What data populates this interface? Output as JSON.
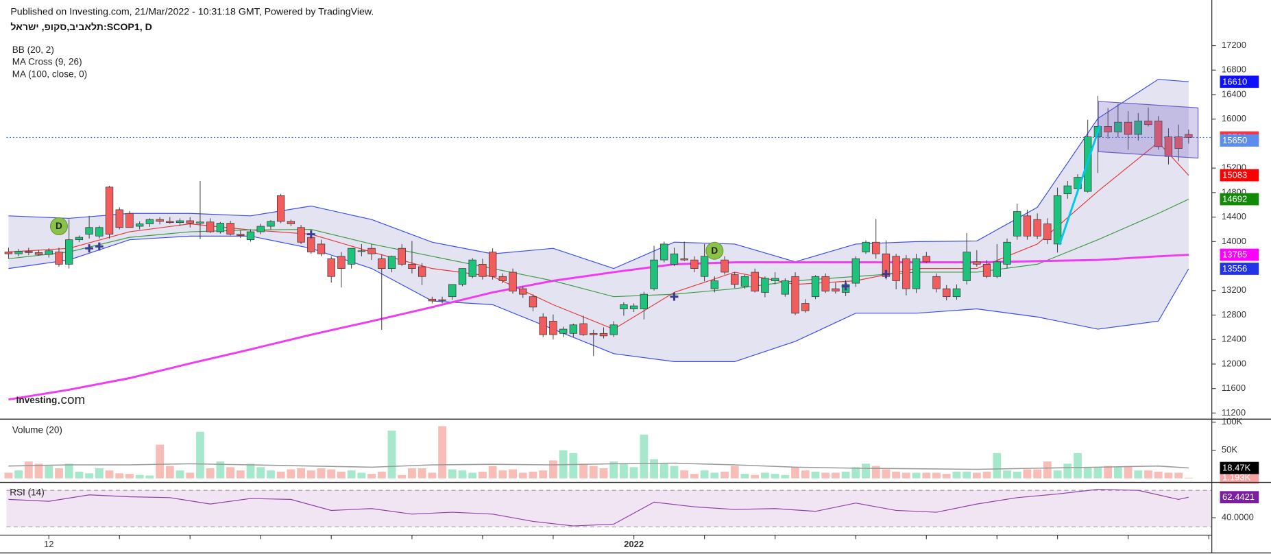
{
  "header": {
    "published": "Published on Investing.com, 21/Mar/2022 - 10:31:18 GMT, Powered by TradingView.",
    "symbol": "תלאביב,סקופ, ישראל:SCOP1, D",
    "logo": [
      "Investing",
      ".com"
    ]
  },
  "chart_data": [
    {
      "type": "candlestick",
      "indicators": [
        "BB (20, 2)",
        "MA Cross (9, 26)",
        "MA (100, close, 0)"
      ],
      "xlim": [
        -0.2,
        119.3
      ],
      "ylim": [
        11100,
        17680
      ],
      "yticks": [
        11200,
        11600,
        12000,
        12400,
        12800,
        13200,
        14000,
        14400,
        14800,
        15200,
        16000,
        16400,
        16800,
        17200
      ],
      "xticks": [
        {
          "value": 4,
          "label": "12"
        },
        {
          "value": 62,
          "label": "2022"
        }
      ],
      "xtick_marks": [
        11,
        18,
        25,
        32,
        40,
        47,
        54,
        69,
        76,
        84,
        91,
        98,
        104,
        111,
        119
      ],
      "up_color": "#1fc27a",
      "down_color": "#f25c5c",
      "last_label_color": "#f23645",
      "open": [
        13830,
        13800,
        13840,
        13820,
        13790,
        13830,
        13630,
        14030,
        14120,
        14090,
        14890,
        14520,
        14460,
        14250,
        14290,
        14360,
        14330,
        14310,
        14340,
        14300,
        14320,
        14160,
        14300,
        14120,
        14030,
        14160,
        14250,
        14750,
        14330,
        14230,
        14070,
        13960,
        13720,
        13760,
        13630,
        13850,
        13890,
        13720,
        13560,
        13890,
        13630,
        13590,
        13060,
        13050,
        13100,
        13300,
        13430,
        13630,
        13830,
        13430,
        13500,
        13230,
        13100,
        12770,
        12700,
        12500,
        12500,
        12660,
        12500,
        12500,
        12480,
        12900,
        12900,
        12900,
        13230,
        13700,
        13630,
        13720,
        13700,
        13430,
        13230,
        13700,
        13460,
        13270,
        13500,
        13170,
        13360,
        13140,
        13430,
        12990,
        13100,
        13430,
        13230,
        13170,
        13320,
        13830,
        13990,
        13800,
        13760,
        13720,
        13230,
        13760,
        13430,
        13230,
        13100,
        13360,
        13670,
        13630,
        13430,
        13630,
        14090,
        14420,
        14360,
        14290,
        13960,
        14780,
        14860,
        14820,
        15710,
        15880,
        15790,
        15950,
        15750,
        15970,
        15970,
        15710,
        15710,
        15750
      ],
      "high": [
        13900,
        13880,
        13900,
        13860,
        13890,
        13900,
        14360,
        14100,
        14420,
        14260,
        14910,
        14560,
        14500,
        14330,
        14380,
        14400,
        14400,
        14380,
        14400,
        14990,
        14380,
        14320,
        14340,
        14180,
        14200,
        14290,
        14350,
        14780,
        14360,
        14270,
        14120,
        14030,
        13760,
        13830,
        13890,
        13960,
        13960,
        13790,
        13770,
        13960,
        14010,
        13650,
        13100,
        13100,
        13280,
        13560,
        13730,
        13720,
        13890,
        13480,
        13560,
        13270,
        13140,
        12830,
        12810,
        12610,
        12660,
        12790,
        12560,
        12600,
        12700,
        13010,
        12990,
        13180,
        13930,
        14000,
        13900,
        14000,
        13760,
        13960,
        13430,
        13760,
        13500,
        13460,
        13560,
        13430,
        13500,
        13400,
        13500,
        13060,
        13450,
        13480,
        13330,
        13370,
        13760,
        14020,
        14370,
        14020,
        13800,
        13780,
        13800,
        13830,
        13480,
        13290,
        13300,
        14140,
        13860,
        13700,
        13960,
        14050,
        14620,
        14520,
        14460,
        14380,
        14880,
        14990,
        15100,
        15990,
        16380,
        16180,
        16250,
        16130,
        16100,
        16190,
        16050,
        15850,
        15910,
        15830
      ],
      "low": [
        13720,
        13760,
        13780,
        13770,
        13740,
        13590,
        13560,
        13990,
        14050,
        14050,
        14050,
        14200,
        14250,
        14200,
        14240,
        14280,
        14290,
        14260,
        14230,
        14040,
        14140,
        14130,
        14100,
        14060,
        14000,
        14120,
        14200,
        14300,
        14250,
        13960,
        13800,
        13760,
        13330,
        13250,
        13560,
        13760,
        13700,
        12560,
        13500,
        13600,
        13480,
        13290,
        12990,
        12990,
        13050,
        13270,
        13400,
        13380,
        13380,
        13320,
        13150,
        13080,
        12860,
        12440,
        12400,
        12440,
        12440,
        12460,
        12130,
        12420,
        12440,
        12790,
        12850,
        12730,
        13200,
        13660,
        13600,
        13680,
        13500,
        13350,
        13170,
        13460,
        13240,
        13230,
        13170,
        13090,
        13300,
        13100,
        12800,
        12840,
        13060,
        13160,
        13150,
        13110,
        13260,
        13800,
        13720,
        13380,
        13220,
        13120,
        13160,
        13650,
        13170,
        13040,
        13050,
        13300,
        13590,
        13400,
        13400,
        13560,
        14030,
        14030,
        14040,
        13960,
        13820,
        14700,
        14790,
        14800,
        15120,
        15680,
        15700,
        15500,
        15650,
        15880,
        15500,
        15260,
        15310,
        15600
      ],
      "close": [
        13800,
        13840,
        13820,
        13790,
        13850,
        13630,
        14030,
        14070,
        14230,
        14230,
        14120,
        14230,
        14230,
        14290,
        14360,
        14330,
        14310,
        14340,
        14300,
        14320,
        14160,
        14300,
        14120,
        14100,
        14160,
        14250,
        14330,
        14330,
        14290,
        13990,
        13830,
        13800,
        13430,
        13560,
        13890,
        13850,
        13800,
        13560,
        13760,
        13630,
        13560,
        13430,
        13030,
        13040,
        13300,
        13560,
        13700,
        13430,
        13430,
        13360,
        13190,
        13140,
        12930,
        12480,
        12480,
        12570,
        12640,
        12480,
        12480,
        12460,
        12640,
        12970,
        12950,
        13140,
        13700,
        13960,
        13800,
        13700,
        13560,
        13760,
        13360,
        13500,
        13300,
        13430,
        13190,
        13400,
        13400,
        13360,
        12830,
        12870,
        13430,
        13190,
        13190,
        13300,
        13720,
        13990,
        13800,
        13430,
        13360,
        13230,
        13720,
        13670,
        13230,
        13100,
        13230,
        13830,
        13630,
        13430,
        13670,
        13990,
        14490,
        14090,
        14090,
        14030,
        14750,
        14910,
        15050,
        15710,
        15880,
        15790,
        15950,
        15750,
        15970,
        15910,
        15550,
        15390,
        15520,
        15701
      ],
      "overlay_x": [
        0,
        6,
        12,
        18,
        24,
        30,
        36,
        42,
        48,
        54,
        60,
        66,
        72,
        78,
        84,
        90,
        96,
        102,
        108,
        114,
        117
      ],
      "band": {
        "line_color": "#3a4bf0",
        "fill": "#dcdcef",
        "upper": [
          14420,
          14380,
          14460,
          14460,
          14420,
          14580,
          14360,
          13990,
          13800,
          13890,
          13560,
          13990,
          13960,
          13670,
          13960,
          14000,
          14010,
          14560,
          16010,
          16650,
          16610
        ],
        "lower": [
          13560,
          13700,
          14030,
          14090,
          14090,
          13890,
          13560,
          13030,
          12970,
          12570,
          12170,
          12040,
          12040,
          12370,
          12830,
          12830,
          12900,
          12770,
          12570,
          12700,
          13556
        ],
        "upper_label_color": "#0d0dff",
        "lower_label_color": "#2233e6"
      },
      "lines": [
        {
          "color": "#e53935",
          "label_color": "#ff0000",
          "values": [
            13830,
            13890,
            14160,
            14290,
            14190,
            14120,
            13830,
            13560,
            13430,
            12970,
            12570,
            13170,
            13500,
            13300,
            13360,
            13560,
            13560,
            13960,
            14820,
            15620,
            15083
          ]
        },
        {
          "color": "#3c9b45",
          "label_color": "#138a07",
          "values": [
            13720,
            13830,
            14070,
            14160,
            14190,
            14200,
            13960,
            13760,
            13560,
            13360,
            13100,
            13140,
            13230,
            13360,
            13430,
            13500,
            13500,
            13630,
            14030,
            14460,
            14692
          ]
        },
        {
          "color": "#f03cf0",
          "label_color": "#ff00ff",
          "width": 2.5,
          "values": [
            11420,
            11580,
            11770,
            12010,
            12240,
            12480,
            12700,
            12930,
            13170,
            13360,
            13500,
            13630,
            13660,
            13660,
            13660,
            13660,
            13660,
            13680,
            13700,
            13760,
            13785
          ]
        }
      ],
      "extra_labels": [
        {
          "value": 15650,
          "color": "#5b8def"
        }
      ],
      "dividends": {
        "x": [
          5,
          70
        ],
        "values": [
          14250,
          13850
        ],
        "label": "D",
        "color": "#8bc34a"
      },
      "crosses": {
        "x": [
          8,
          9,
          30,
          66,
          83,
          87
        ],
        "values": [
          13890,
          13920,
          14120,
          13100,
          13270,
          13470
        ],
        "color": "#3b3b8f"
      }
    },
    {
      "type": "bar",
      "title": "Volume (20)",
      "ylim": [
        0,
        104000
      ],
      "yticks": [
        {
          "value": 100000,
          "label": "100K"
        },
        {
          "value": 50000,
          "label": "50K"
        }
      ],
      "up_color": "#a6e8cc",
      "down_color": "#f9bdb8",
      "values": [
        10000,
        14000,
        30000,
        26000,
        22000,
        18000,
        26000,
        12000,
        9000,
        18000,
        14000,
        9000,
        8000,
        6000,
        5000,
        60000,
        22000,
        14000,
        10000,
        83000,
        18000,
        30000,
        20000,
        14000,
        26000,
        20000,
        14000,
        12000,
        16000,
        18000,
        14000,
        18000,
        16000,
        12000,
        14000,
        10000,
        8000,
        12000,
        85000,
        6000,
        18000,
        18000,
        10000,
        93000,
        16000,
        14000,
        10000,
        12000,
        22000,
        14000,
        16000,
        10000,
        12000,
        14000,
        32000,
        50000,
        45000,
        26000,
        22000,
        18000,
        30000,
        26000,
        20000,
        78000,
        34000,
        26000,
        22000,
        14000,
        8000,
        14000,
        10000,
        12000,
        22000,
        8000,
        6000,
        10000,
        8000,
        6000,
        20000,
        14000,
        12000,
        10000,
        10000,
        12000,
        20000,
        26000,
        22000,
        16000,
        12000,
        10000,
        10000,
        10000,
        10000,
        8000,
        12000,
        12000,
        10000,
        12000,
        45000,
        14000,
        12000,
        16000,
        16000,
        30000,
        14000,
        26000,
        45000,
        20000,
        20000,
        22000,
        20000,
        22000,
        14000,
        14000,
        12000,
        10000,
        10000,
        1193
      ],
      "last_label": "1.193K",
      "last_label_color": "#f7a3a3",
      "average": {
        "color": "#9a9a9a",
        "label_color": "#000000",
        "x": [
          0,
          6,
          12,
          18,
          24,
          30,
          36,
          42,
          48,
          54,
          60,
          66,
          72,
          78,
          84,
          90,
          96,
          102,
          108,
          114,
          117
        ],
        "values": [
          22000,
          24000,
          24000,
          26000,
          24000,
          22000,
          20000,
          24000,
          25000,
          24000,
          26000,
          27000,
          24000,
          20000,
          18000,
          17000,
          16000,
          18000,
          20000,
          22000,
          18470
        ],
        "last_label": "18.47K"
      }
    },
    {
      "type": "line",
      "title": "RSI (14)",
      "color": "#8e3fa6",
      "label_color": "#7b1fa2",
      "band_fill": "#f1e4f3",
      "ylim": [
        21,
        76
      ],
      "yticks": [
        {
          "value": 40,
          "label": "40.0000"
        }
      ],
      "band": [
        30,
        70
      ],
      "x": [
        0,
        4,
        8,
        12,
        16,
        20,
        24,
        28,
        32,
        36,
        40,
        44,
        48,
        52,
        56,
        60,
        64,
        68,
        72,
        76,
        80,
        84,
        88,
        92,
        96,
        100,
        104,
        108,
        112,
        116,
        117
      ],
      "values": [
        60,
        58,
        65,
        63,
        62,
        55,
        61,
        60,
        48,
        50,
        44,
        46,
        44,
        36,
        31,
        33,
        57,
        52,
        49,
        50,
        47,
        56,
        48,
        46,
        55,
        62,
        66,
        71,
        70,
        60,
        62.4421
      ]
    }
  ]
}
